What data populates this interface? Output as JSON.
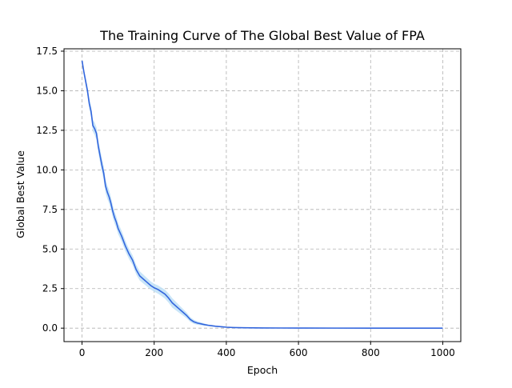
{
  "chart_data": {
    "type": "line",
    "title": "The Training Curve of The Global Best Value of FPA",
    "xlabel": "Epoch",
    "ylabel": "Global Best Value",
    "xlim": [
      -50,
      1050
    ],
    "ylim": [
      -0.85,
      17.65
    ],
    "xticks": [
      0,
      200,
      400,
      600,
      800,
      1000
    ],
    "yticks": [
      0.0,
      2.5,
      5.0,
      7.5,
      10.0,
      12.5,
      15.0,
      17.5
    ],
    "xtick_labels": [
      "0",
      "200",
      "400",
      "600",
      "800",
      "1000"
    ],
    "ytick_labels": [
      "0.0",
      "2.5",
      "5.0",
      "7.5",
      "10.0",
      "12.5",
      "15.0",
      "17.5"
    ],
    "grid": true,
    "grid_style": "dashed",
    "series": [
      {
        "color": "#3366dd",
        "band_color": "#bfe0f7",
        "points": [
          [
            0,
            16.9
          ],
          [
            5,
            16.2
          ],
          [
            10,
            15.6
          ],
          [
            15,
            15.0
          ],
          [
            20,
            14.2
          ],
          [
            25,
            13.7
          ],
          [
            30,
            12.8
          ],
          [
            35,
            12.6
          ],
          [
            40,
            12.3
          ],
          [
            45,
            11.5
          ],
          [
            50,
            10.9
          ],
          [
            55,
            10.3
          ],
          [
            60,
            9.8
          ],
          [
            65,
            9.0
          ],
          [
            70,
            8.6
          ],
          [
            75,
            8.3
          ],
          [
            80,
            7.9
          ],
          [
            85,
            7.4
          ],
          [
            90,
            7.0
          ],
          [
            95,
            6.7
          ],
          [
            100,
            6.3
          ],
          [
            110,
            5.8
          ],
          [
            120,
            5.2
          ],
          [
            130,
            4.7
          ],
          [
            140,
            4.3
          ],
          [
            150,
            3.7
          ],
          [
            160,
            3.3
          ],
          [
            170,
            3.1
          ],
          [
            180,
            2.9
          ],
          [
            190,
            2.7
          ],
          [
            200,
            2.55
          ],
          [
            210,
            2.45
          ],
          [
            220,
            2.3
          ],
          [
            230,
            2.15
          ],
          [
            240,
            1.9
          ],
          [
            250,
            1.6
          ],
          [
            260,
            1.4
          ],
          [
            270,
            1.2
          ],
          [
            280,
            1.0
          ],
          [
            290,
            0.8
          ],
          [
            300,
            0.55
          ],
          [
            310,
            0.4
          ],
          [
            320,
            0.32
          ],
          [
            330,
            0.27
          ],
          [
            340,
            0.22
          ],
          [
            350,
            0.18
          ],
          [
            360,
            0.15
          ],
          [
            370,
            0.12
          ],
          [
            380,
            0.1
          ],
          [
            390,
            0.08
          ],
          [
            400,
            0.06
          ],
          [
            420,
            0.04
          ],
          [
            450,
            0.025
          ],
          [
            500,
            0.015
          ],
          [
            550,
            0.01
          ],
          [
            600,
            0.006
          ],
          [
            700,
            0.003
          ],
          [
            800,
            0.002
          ],
          [
            900,
            0.001
          ],
          [
            1000,
            0.0
          ]
        ],
        "band_halfwidth": [
          [
            0,
            0.1
          ],
          [
            20,
            0.35
          ],
          [
            60,
            0.45
          ],
          [
            100,
            0.35
          ],
          [
            150,
            0.3
          ],
          [
            200,
            0.25
          ],
          [
            250,
            0.3
          ],
          [
            300,
            0.15
          ],
          [
            350,
            0.05
          ],
          [
            400,
            0.02
          ],
          [
            500,
            0.0
          ],
          [
            1000,
            0.0
          ]
        ]
      }
    ]
  }
}
